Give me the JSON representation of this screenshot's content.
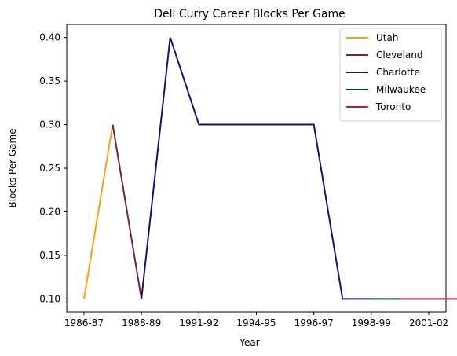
{
  "chart_data": {
    "type": "line",
    "title": "Dell Curry Career Blocks Per Game",
    "xlabel": "Year",
    "ylabel": "Blocks Per Game",
    "x_ticks": [
      "1986-87",
      "1988-89",
      "1991-92",
      "1994-95",
      "1996-97",
      "1998-99",
      "2001-02"
    ],
    "x_tick_positions": [
      0,
      2,
      4,
      6,
      8,
      10,
      12
    ],
    "y_ticks": [
      "0.10",
      "0.15",
      "0.20",
      "0.25",
      "0.30",
      "0.35",
      "0.40"
    ],
    "y_tick_values": [
      0.1,
      0.15,
      0.2,
      0.25,
      0.3,
      0.35,
      0.4
    ],
    "xlim": [
      -0.6,
      12.6
    ],
    "ylim": [
      0.085,
      0.415
    ],
    "grid": false,
    "legend_position": "top-right",
    "series": [
      {
        "name": "Utah",
        "color": "#F9A01B",
        "x": [
          0,
          1
        ],
        "y": [
          0.1,
          0.3
        ]
      },
      {
        "name": "Cleveland",
        "color": "#6F263D",
        "x": [
          1,
          2
        ],
        "y": [
          0.3,
          0.1
        ]
      },
      {
        "name": "Charlotte",
        "color": "#1D1160",
        "x": [
          2,
          3,
          4,
          5,
          6,
          7,
          8,
          9,
          10
        ],
        "y": [
          0.1,
          0.4,
          0.3,
          0.3,
          0.3,
          0.3,
          0.3,
          0.1,
          0.1
        ]
      },
      {
        "name": "Milwaukee",
        "color": "#00471B",
        "x": [
          10,
          11
        ],
        "y": [
          0.1,
          0.1
        ]
      },
      {
        "name": "Toronto",
        "color": "#CE1141",
        "x": [
          11,
          12,
          13
        ],
        "y": [
          0.1,
          0.1,
          0.1
        ]
      }
    ]
  }
}
